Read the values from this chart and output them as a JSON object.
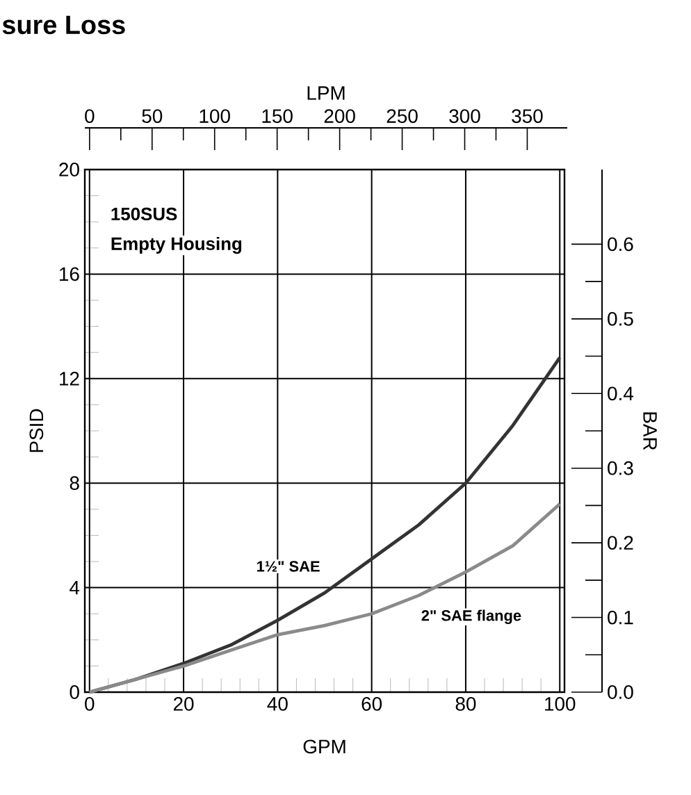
{
  "chart_data": {
    "type": "line",
    "title": "sure Loss",
    "xlabel": "GPM",
    "ylabel": "PSID",
    "x2label": "LPM",
    "y2label": "BAR",
    "annotations": [
      "150SUS",
      "Empty Housing"
    ],
    "x": [
      0,
      10,
      20,
      30,
      40,
      50,
      60,
      70,
      80,
      90,
      100
    ],
    "series": [
      {
        "name": "1½\" SAE",
        "color": "#333333",
        "values": [
          0,
          0.5,
          1.1,
          1.8,
          2.75,
          3.8,
          5.1,
          6.4,
          8.0,
          10.2,
          12.8
        ]
      },
      {
        "name": "2\" SAE flange",
        "color": "#8a8a8a",
        "values": [
          0,
          0.5,
          1.0,
          1.6,
          2.2,
          2.55,
          3.0,
          3.7,
          4.6,
          5.6,
          7.2
        ]
      }
    ],
    "xlim": [
      -1,
      101
    ],
    "xticks": [
      0,
      20,
      40,
      60,
      80,
      100
    ],
    "ylim": [
      0,
      20
    ],
    "yticks": [
      0,
      4,
      8,
      12,
      16,
      20
    ],
    "x2lim": [
      -3.8,
      382
    ],
    "x2ticks": [
      0,
      50,
      100,
      150,
      200,
      250,
      300,
      350
    ],
    "y2lim": [
      0,
      0.7
    ],
    "y2ticks": [
      {
        "value": 0,
        "label": "0.0"
      },
      0.1,
      0.2,
      0.3,
      0.4,
      0.5,
      0.6
    ],
    "grid": true,
    "legend": false,
    "marker": "none",
    "line_style": "solid"
  }
}
